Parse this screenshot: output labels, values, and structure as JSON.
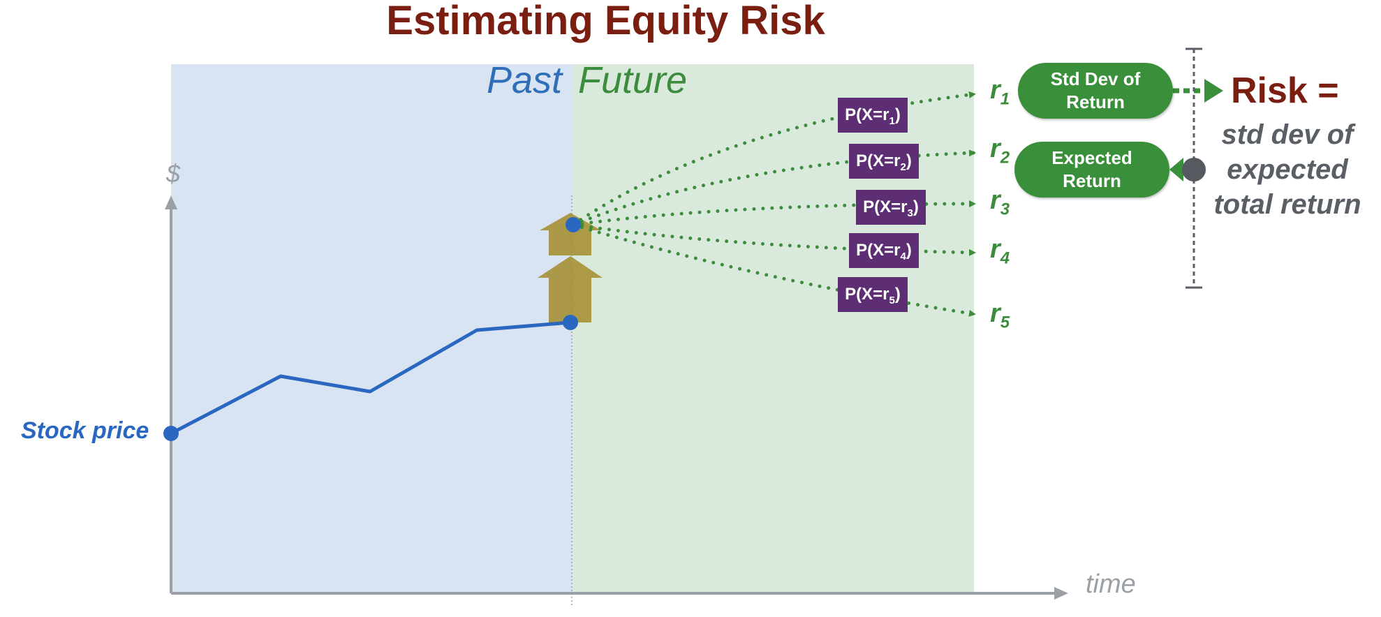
{
  "title": "Estimating Equity Risk",
  "panels": {
    "past": "Past",
    "future": "Future"
  },
  "axes": {
    "y_label": "$",
    "x_label": "time"
  },
  "series_label": "Stock price",
  "outcomes": [
    {
      "prob_label": "P(X=r",
      "sub": "1",
      "close": ")",
      "r": "r",
      "r_sub": "1"
    },
    {
      "prob_label": "P(X=r",
      "sub": "2",
      "close": ")",
      "r": "r",
      "r_sub": "2"
    },
    {
      "prob_label": "P(X=r",
      "sub": "3",
      "close": ")",
      "r": "r",
      "r_sub": "3"
    },
    {
      "prob_label": "P(X=r",
      "sub": "4",
      "close": ")",
      "r": "r",
      "r_sub": "4"
    },
    {
      "prob_label": "P(X=r",
      "sub": "5",
      "close": ")",
      "r": "r",
      "r_sub": "5"
    }
  ],
  "pills": {
    "std_dev": [
      "Std Dev of",
      "Return"
    ],
    "expected": [
      "Expected",
      "Return"
    ]
  },
  "risk": {
    "title": "Risk =",
    "lines": [
      "std dev of",
      "expected",
      "total return"
    ]
  },
  "colors": {
    "title": "#7b1e12",
    "past_bg": "#d8e4f1",
    "future_bg": "#d9eadc",
    "price_line": "#2a67c0",
    "green": "#3d8b3d",
    "prob_box": "#5d2e73",
    "arrow_up": "#a38c2c",
    "axis": "#9aa0a6"
  }
}
